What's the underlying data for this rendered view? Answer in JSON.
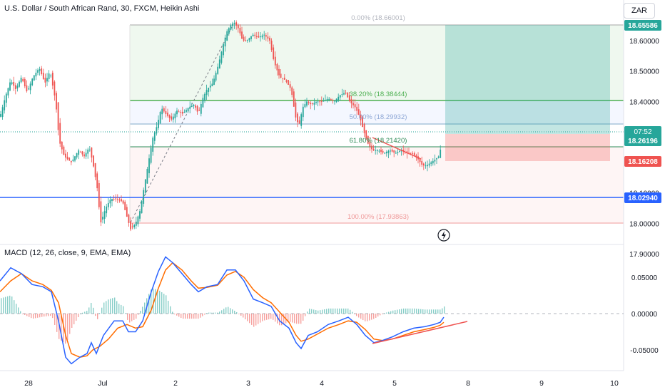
{
  "header": {
    "title": "U.S. Dollar / South African Rand, 30, FXCM, Heikin Ashi",
    "currency": "ZAR"
  },
  "colors": {
    "bull": "#26a69a",
    "bear": "#ef5350",
    "macd_line": "#2962ff",
    "signal_line": "#ff6d00",
    "level_blue": "#2962ff",
    "fib_green": "#4caf50"
  },
  "price_badges": {
    "tp": "18.65586",
    "countdown": "07:52",
    "last": "18.26196",
    "sl": "18.16208",
    "support": "18.02940"
  },
  "fib_labels": {
    "f0": "0.00% (18.66001)",
    "f382": "38.20% (18.38444)",
    "f50": "50.00% (18.29932)",
    "f618": "61.80% (18.21420)",
    "f100": "100.00% (17.93863)"
  },
  "macd_title": "MACD (12, 26, close, 9, EMA, EMA)",
  "chart_data": [
    {
      "type": "candlestick",
      "title": "U.S. Dollar / South African Rand, 30, FXCM, Heikin Ashi",
      "y_ticks": [
        "18.60000",
        "18.50000",
        "18.40000",
        "18.30000",
        "18.20000",
        "18.10000",
        "18.00000",
        "17.90000"
      ],
      "ylim": [
        17.86,
        18.69
      ],
      "x_ticks": [
        "28",
        "Jul",
        "2",
        "3",
        "4",
        "5",
        "8",
        "9",
        "10"
      ],
      "path": [
        [
          0,
          18.35
        ],
        [
          8,
          18.42
        ],
        [
          15,
          18.47
        ],
        [
          22,
          18.44
        ],
        [
          30,
          18.48
        ],
        [
          38,
          18.43
        ],
        [
          46,
          18.48
        ],
        [
          55,
          18.51
        ],
        [
          63,
          18.46
        ],
        [
          70,
          18.5
        ],
        [
          78,
          18.4
        ],
        [
          83,
          18.27
        ],
        [
          90,
          18.22
        ],
        [
          100,
          18.2
        ],
        [
          110,
          18.24
        ],
        [
          118,
          18.22
        ],
        [
          125,
          18.25
        ],
        [
          130,
          18.2
        ],
        [
          136,
          18.12
        ],
        [
          141,
          18.0
        ],
        [
          148,
          18.05
        ],
        [
          155,
          18.08
        ],
        [
          164,
          18.08
        ],
        [
          172,
          18.07
        ],
        [
          178,
          18.02
        ],
        [
          183,
          17.98
        ],
        [
          190,
          18.0
        ],
        [
          196,
          18.04
        ],
        [
          202,
          18.12
        ],
        [
          208,
          18.2
        ],
        [
          214,
          18.28
        ],
        [
          220,
          18.32
        ],
        [
          226,
          18.38
        ],
        [
          232,
          18.36
        ],
        [
          240,
          18.34
        ],
        [
          248,
          18.37
        ],
        [
          256,
          18.36
        ],
        [
          264,
          18.38
        ],
        [
          272,
          18.39
        ],
        [
          278,
          18.36
        ],
        [
          284,
          18.41
        ],
        [
          290,
          18.44
        ],
        [
          298,
          18.46
        ],
        [
          306,
          18.52
        ],
        [
          312,
          18.58
        ],
        [
          318,
          18.63
        ],
        [
          323,
          18.65
        ],
        [
          328,
          18.66
        ],
        [
          334,
          18.64
        ],
        [
          340,
          18.6
        ],
        [
          346,
          18.6
        ],
        [
          354,
          18.62
        ],
        [
          362,
          18.61
        ],
        [
          370,
          18.62
        ],
        [
          378,
          18.6
        ],
        [
          384,
          18.53
        ],
        [
          392,
          18.48
        ],
        [
          400,
          18.47
        ],
        [
          408,
          18.44
        ],
        [
          414,
          18.35
        ],
        [
          419,
          18.32
        ],
        [
          424,
          18.38
        ],
        [
          430,
          18.4
        ],
        [
          436,
          18.39
        ],
        [
          444,
          18.4
        ],
        [
          452,
          18.4
        ],
        [
          460,
          18.41
        ],
        [
          468,
          18.4
        ],
        [
          476,
          18.42
        ],
        [
          484,
          18.43
        ],
        [
          490,
          18.4
        ],
        [
          498,
          18.38
        ],
        [
          504,
          18.35
        ],
        [
          510,
          18.3
        ],
        [
          516,
          18.26
        ],
        [
          522,
          18.24
        ],
        [
          530,
          18.24
        ],
        [
          538,
          18.23
        ],
        [
          546,
          18.24
        ],
        [
          554,
          18.23
        ],
        [
          562,
          18.24
        ],
        [
          570,
          18.23
        ],
        [
          578,
          18.23
        ],
        [
          586,
          18.21
        ],
        [
          592,
          18.19
        ],
        [
          598,
          18.19
        ],
        [
          604,
          18.2
        ],
        [
          610,
          18.21
        ],
        [
          615,
          18.22
        ],
        [
          619,
          18.26
        ]
      ]
    },
    {
      "type": "line",
      "title": "MACD (12, 26, close, 9, EMA, EMA)",
      "y_ticks": [
        "0.05000",
        "0.00000",
        "-0.05000"
      ],
      "ylim": [
        -0.075,
        0.085
      ],
      "series": [
        {
          "role": "macd",
          "points": [
            [
              0,
              0.045
            ],
            [
              15,
              0.063
            ],
            [
              30,
              0.055
            ],
            [
              45,
              0.04
            ],
            [
              60,
              0.037
            ],
            [
              72,
              0.03
            ],
            [
              82,
              -0.01
            ],
            [
              92,
              -0.06
            ],
            [
              100,
              -0.069
            ],
            [
              112,
              -0.06
            ],
            [
              122,
              -0.055
            ],
            [
              128,
              -0.04
            ],
            [
              135,
              -0.055
            ],
            [
              145,
              -0.03
            ],
            [
              160,
              -0.01
            ],
            [
              172,
              -0.01
            ],
            [
              180,
              -0.025
            ],
            [
              190,
              -0.025
            ],
            [
              200,
              -0.01
            ],
            [
              212,
              0.03
            ],
            [
              222,
              0.058
            ],
            [
              232,
              0.078
            ],
            [
              242,
              0.07
            ],
            [
              255,
              0.055
            ],
            [
              268,
              0.04
            ],
            [
              278,
              0.03
            ],
            [
              290,
              0.037
            ],
            [
              305,
              0.04
            ],
            [
              318,
              0.06
            ],
            [
              330,
              0.06
            ],
            [
              342,
              0.045
            ],
            [
              355,
              0.02
            ],
            [
              368,
              0.015
            ],
            [
              380,
              0.01
            ],
            [
              392,
              -0.01
            ],
            [
              405,
              -0.02
            ],
            [
              415,
              -0.04
            ],
            [
              422,
              -0.048
            ],
            [
              432,
              -0.03
            ],
            [
              445,
              -0.025
            ],
            [
              460,
              -0.015
            ],
            [
              475,
              -0.01
            ],
            [
              488,
              -0.005
            ],
            [
              500,
              -0.015
            ],
            [
              512,
              -0.03
            ],
            [
              524,
              -0.04
            ],
            [
              536,
              -0.037
            ],
            [
              550,
              -0.032
            ],
            [
              565,
              -0.025
            ],
            [
              580,
              -0.02
            ],
            [
              595,
              -0.018
            ],
            [
              608,
              -0.015
            ],
            [
              617,
              -0.012
            ],
            [
              622,
              -0.005
            ]
          ]
        },
        {
          "role": "signal",
          "points": [
            [
              0,
              0.03
            ],
            [
              15,
              0.045
            ],
            [
              30,
              0.055
            ],
            [
              45,
              0.045
            ],
            [
              60,
              0.04
            ],
            [
              72,
              0.032
            ],
            [
              82,
              0.015
            ],
            [
              92,
              -0.03
            ],
            [
              100,
              -0.055
            ],
            [
              112,
              -0.06
            ],
            [
              122,
              -0.058
            ],
            [
              130,
              -0.05
            ],
            [
              140,
              -0.045
            ],
            [
              152,
              -0.035
            ],
            [
              165,
              -0.02
            ],
            [
              178,
              -0.015
            ],
            [
              190,
              -0.02
            ],
            [
              200,
              -0.018
            ],
            [
              212,
              0.005
            ],
            [
              222,
              0.035
            ],
            [
              232,
              0.06
            ],
            [
              242,
              0.07
            ],
            [
              255,
              0.06
            ],
            [
              268,
              0.045
            ],
            [
              278,
              0.035
            ],
            [
              290,
              0.036
            ],
            [
              305,
              0.039
            ],
            [
              318,
              0.053
            ],
            [
              330,
              0.058
            ],
            [
              342,
              0.05
            ],
            [
              355,
              0.033
            ],
            [
              368,
              0.022
            ],
            [
              380,
              0.015
            ],
            [
              392,
              0.002
            ],
            [
              405,
              -0.012
            ],
            [
              415,
              -0.03
            ],
            [
              422,
              -0.038
            ],
            [
              432,
              -0.035
            ],
            [
              445,
              -0.028
            ],
            [
              460,
              -0.02
            ],
            [
              475,
              -0.015
            ],
            [
              488,
              -0.01
            ],
            [
              500,
              -0.012
            ],
            [
              512,
              -0.022
            ],
            [
              524,
              -0.035
            ],
            [
              536,
              -0.037
            ],
            [
              550,
              -0.035
            ],
            [
              565,
              -0.03
            ],
            [
              580,
              -0.025
            ],
            [
              595,
              -0.022
            ],
            [
              608,
              -0.019
            ],
            [
              617,
              -0.016
            ],
            [
              622,
              -0.012
            ]
          ]
        }
      ]
    }
  ]
}
